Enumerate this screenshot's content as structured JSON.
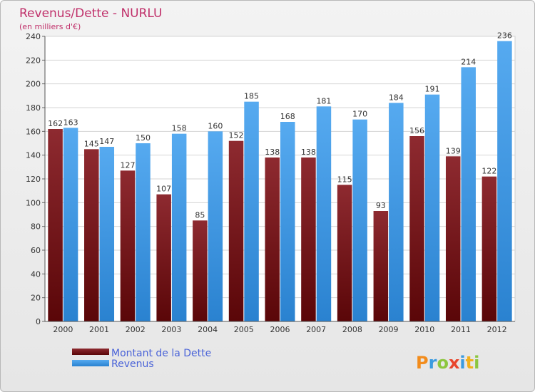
{
  "chart_data": {
    "type": "bar",
    "title": "Revenus/Dette - NURLU",
    "subtitle": "(en milliers d'€)",
    "categories": [
      "2000",
      "2001",
      "2002",
      "2003",
      "2004",
      "2005",
      "2006",
      "2007",
      "2008",
      "2009",
      "2010",
      "2011",
      "2012"
    ],
    "series": [
      {
        "name": "Montant de la Dette",
        "color": "#7a1418",
        "values": [
          162,
          145,
          127,
          107,
          85,
          152,
          138,
          138,
          115,
          93,
          156,
          139,
          122
        ]
      },
      {
        "name": "Revenus",
        "color": "#3d9be6",
        "values": [
          163,
          147,
          150,
          158,
          160,
          185,
          168,
          181,
          170,
          184,
          191,
          214,
          236
        ]
      }
    ],
    "ylim": [
      0,
      240
    ],
    "yticks": [
      0,
      20,
      40,
      60,
      80,
      100,
      120,
      140,
      160,
      180,
      200,
      220,
      240
    ],
    "grid": true,
    "legend_position": "bottom-left"
  },
  "logo": {
    "letters": [
      "P",
      "r",
      "o",
      "x",
      "i",
      "t",
      "i"
    ],
    "colors": [
      "#f28c1c",
      "#3b9be0",
      "#8cc63f",
      "#e8452c",
      "#3b9be0",
      "#f2b01c",
      "#8cc63f"
    ]
  }
}
